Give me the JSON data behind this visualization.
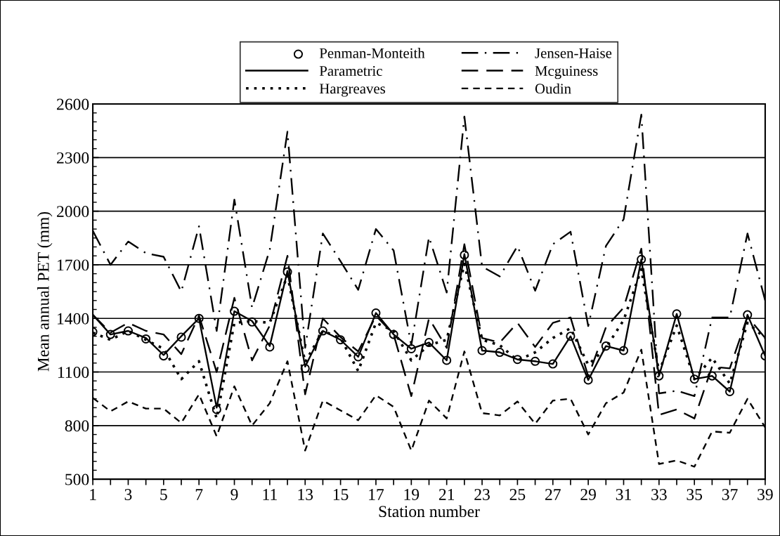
{
  "chart_data": {
    "type": "line",
    "xlabel": "Station number",
    "ylabel": "Mean annual PET (mm)",
    "x": [
      1,
      2,
      3,
      4,
      5,
      6,
      7,
      8,
      9,
      10,
      11,
      12,
      13,
      14,
      15,
      16,
      17,
      18,
      19,
      20,
      21,
      22,
      23,
      24,
      25,
      26,
      27,
      28,
      29,
      30,
      31,
      32,
      33,
      34,
      35,
      36,
      37,
      38,
      39
    ],
    "xlim": [
      1,
      39
    ],
    "xticks": [
      1,
      {
        "value": 2,
        "label": null
      },
      3,
      {
        "value": 4,
        "label": null
      },
      5,
      {
        "value": 6,
        "label": null
      },
      7,
      {
        "value": 8,
        "label": null
      },
      9,
      {
        "value": 10,
        "label": null
      },
      11,
      {
        "value": 12,
        "label": null
      },
      13,
      {
        "value": 14,
        "label": null
      },
      15,
      {
        "value": 16,
        "label": null
      },
      17,
      {
        "value": 18,
        "label": null
      },
      19,
      {
        "value": 20,
        "label": null
      },
      21,
      {
        "value": 22,
        "label": null
      },
      23,
      {
        "value": 24,
        "label": null
      },
      25,
      {
        "value": 26,
        "label": null
      },
      27,
      {
        "value": 28,
        "label": null
      },
      29,
      {
        "value": 30,
        "label": null
      },
      31,
      {
        "value": 32,
        "label": null
      },
      33,
      {
        "value": 34,
        "label": null
      },
      35,
      {
        "value": 36,
        "label": null
      },
      37,
      {
        "value": 38,
        "label": null
      },
      39
    ],
    "ylim": [
      500,
      2600
    ],
    "yticks": [
      500,
      800,
      1100,
      1400,
      1700,
      2000,
      2300,
      2600
    ],
    "grid": "y",
    "legend": "top",
    "series": [
      {
        "name": "Penman-Monteith",
        "color": "#000000",
        "type": "scatter",
        "marker": "circle",
        "values": [
          1325,
          1310,
          1330,
          1285,
          1190,
          1295,
          1400,
          890,
          1440,
          1380,
          1240,
          1660,
          1120,
          1330,
          1280,
          1185,
          1430,
          1310,
          1230,
          1265,
          1165,
          1755,
          1220,
          1210,
          1170,
          1160,
          1145,
          1300,
          1055,
          1245,
          1220,
          1730,
          1078,
          1425,
          1060,
          1078,
          990,
          1420,
          1190
        ]
      },
      {
        "name": "Parametric",
        "color": "#000000",
        "line_style": "solid",
        "values": [
          1420,
          1310,
          1330,
          1290,
          1195,
          1300,
          1400,
          900,
          1440,
          1385,
          1245,
          1665,
          1130,
          1330,
          1280,
          1185,
          1430,
          1310,
          1230,
          1265,
          1165,
          1760,
          1220,
          1210,
          1170,
          1160,
          1145,
          1300,
          1055,
          1245,
          1220,
          1730,
          1078,
          1425,
          1060,
          1078,
          990,
          1420,
          1190
        ]
      },
      {
        "name": "Hargreaves",
        "color": "#000000",
        "line_style": "dotted",
        "values": [
          1320,
          1280,
          1330,
          1280,
          1230,
          1060,
          1160,
          840,
          1375,
          1385,
          1375,
          1640,
          1155,
          1330,
          1290,
          1105,
          1375,
          1330,
          1165,
          1250,
          1280,
          1705,
          1280,
          1250,
          1165,
          1210,
          1290,
          1345,
          1140,
          1235,
          1390,
          1675,
          1100,
          1360,
          1060,
          1180,
          1035,
          1375,
          1290
        ]
      },
      {
        "name": "Jensen-Haise",
        "color": "#000000",
        "line_style": "dashdot",
        "values": [
          1890,
          1700,
          1830,
          1765,
          1745,
          1550,
          1915,
          1330,
          2065,
          1460,
          1785,
          2445,
          1235,
          1875,
          1720,
          1560,
          1900,
          1780,
          1250,
          1855,
          1545,
          2530,
          1690,
          1635,
          1805,
          1555,
          1815,
          1885,
          1357,
          1805,
          1955,
          2540,
          980,
          995,
          965,
          1405,
          1405,
          1875,
          1500
        ]
      },
      {
        "name": "Mcguiness",
        "color": "#000000",
        "line_style": "longdash",
        "values": [
          1420,
          1320,
          1375,
          1330,
          1310,
          1200,
          1415,
          1100,
          1515,
          1165,
          1360,
          1750,
          975,
          1400,
          1295,
          1215,
          1415,
          1310,
          965,
          1400,
          1235,
          1815,
          1290,
          1265,
          1375,
          1240,
          1375,
          1405,
          1075,
          1350,
          1460,
          1790,
          860,
          890,
          840,
          1130,
          1120,
          1410,
          1290
        ]
      },
      {
        "name": "Oudin",
        "color": "#000000",
        "line_style": "dashed",
        "values": [
          955,
          880,
          935,
          895,
          895,
          815,
          975,
          740,
          1020,
          800,
          925,
          1160,
          660,
          940,
          885,
          830,
          970,
          905,
          660,
          940,
          840,
          1215,
          870,
          857,
          935,
          810,
          940,
          950,
          750,
          925,
          985,
          1225,
          585,
          605,
          570,
          767,
          760,
          950,
          790
        ]
      }
    ]
  }
}
